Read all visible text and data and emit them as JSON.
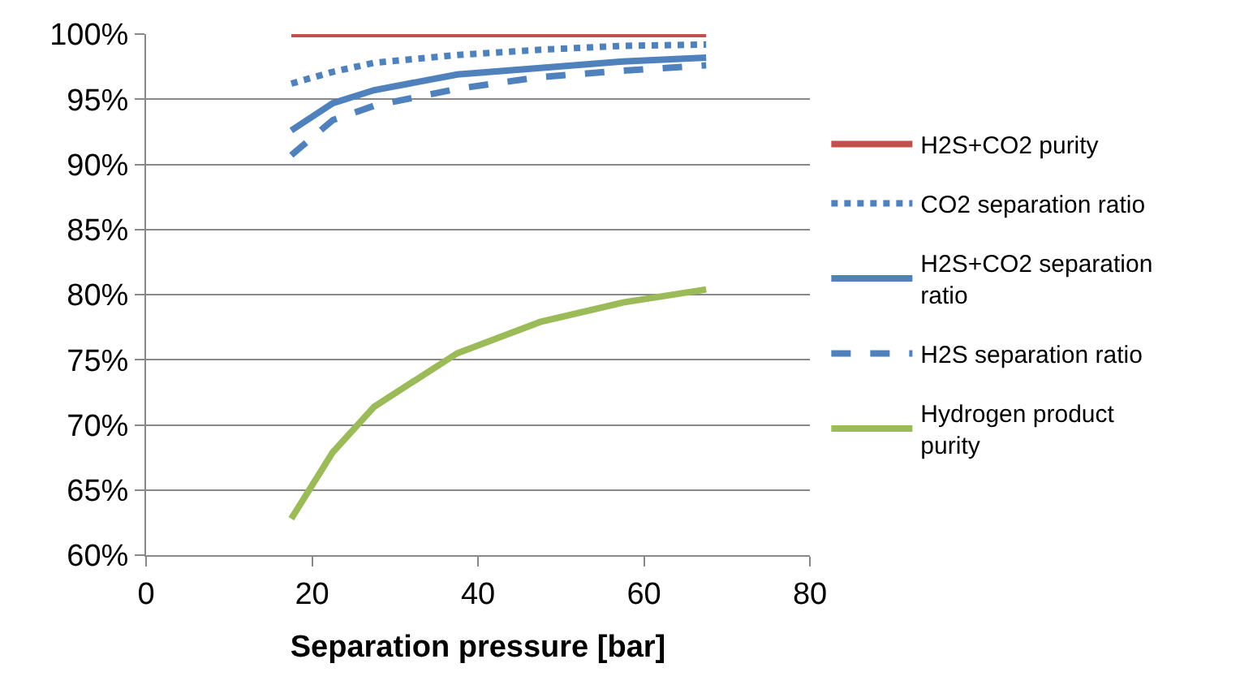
{
  "chart_data": {
    "type": "line",
    "xlabel": "Separation pressure [bar]",
    "x": [
      17.5,
      22.5,
      27.5,
      37.5,
      47.5,
      57.5,
      67.5
    ],
    "series": [
      {
        "name": "H2S+CO2 purity",
        "color": "#c0504d",
        "line_style": "solid",
        "values": [
          100,
          100,
          100,
          100,
          100,
          100,
          100
        ]
      },
      {
        "name": "CO2 separation ratio",
        "color": "#4f81bd",
        "line_style": "dotted",
        "values": [
          96.2,
          97.1,
          97.8,
          98.4,
          98.8,
          99.1,
          99.2
        ]
      },
      {
        "name": "H2S+CO2 separation ratio",
        "color": "#4f81bd",
        "line_style": "solid",
        "values": [
          92.6,
          94.7,
          95.7,
          96.9,
          97.4,
          97.9,
          98.2
        ]
      },
      {
        "name": "H2S separation ratio",
        "color": "#4f81bd",
        "line_style": "dashed",
        "values": [
          90.7,
          93.4,
          94.5,
          95.8,
          96.7,
          97.2,
          97.6
        ]
      },
      {
        "name": "Hydrogen product purity",
        "color": "#9bbb59",
        "line_style": "solid",
        "values": [
          62.8,
          67.9,
          71.4,
          75.5,
          77.9,
          79.4,
          80.4
        ]
      }
    ],
    "xlim": [
      0,
      80
    ],
    "xticks": [
      0,
      20,
      40,
      60,
      80
    ],
    "ylim": [
      60,
      100
    ],
    "yticks": [
      {
        "value": 60,
        "label": "60%"
      },
      {
        "value": 65,
        "label": "65%"
      },
      {
        "value": 70,
        "label": "70%"
      },
      {
        "value": 75,
        "label": "75%"
      },
      {
        "value": 80,
        "label": "80%"
      },
      {
        "value": 85,
        "label": "85%"
      },
      {
        "value": 90,
        "label": "90%"
      },
      {
        "value": 95,
        "label": "95%"
      },
      {
        "value": 100,
        "label": "100%"
      }
    ],
    "grid": "y",
    "legend": "right",
    "marker": "none"
  }
}
